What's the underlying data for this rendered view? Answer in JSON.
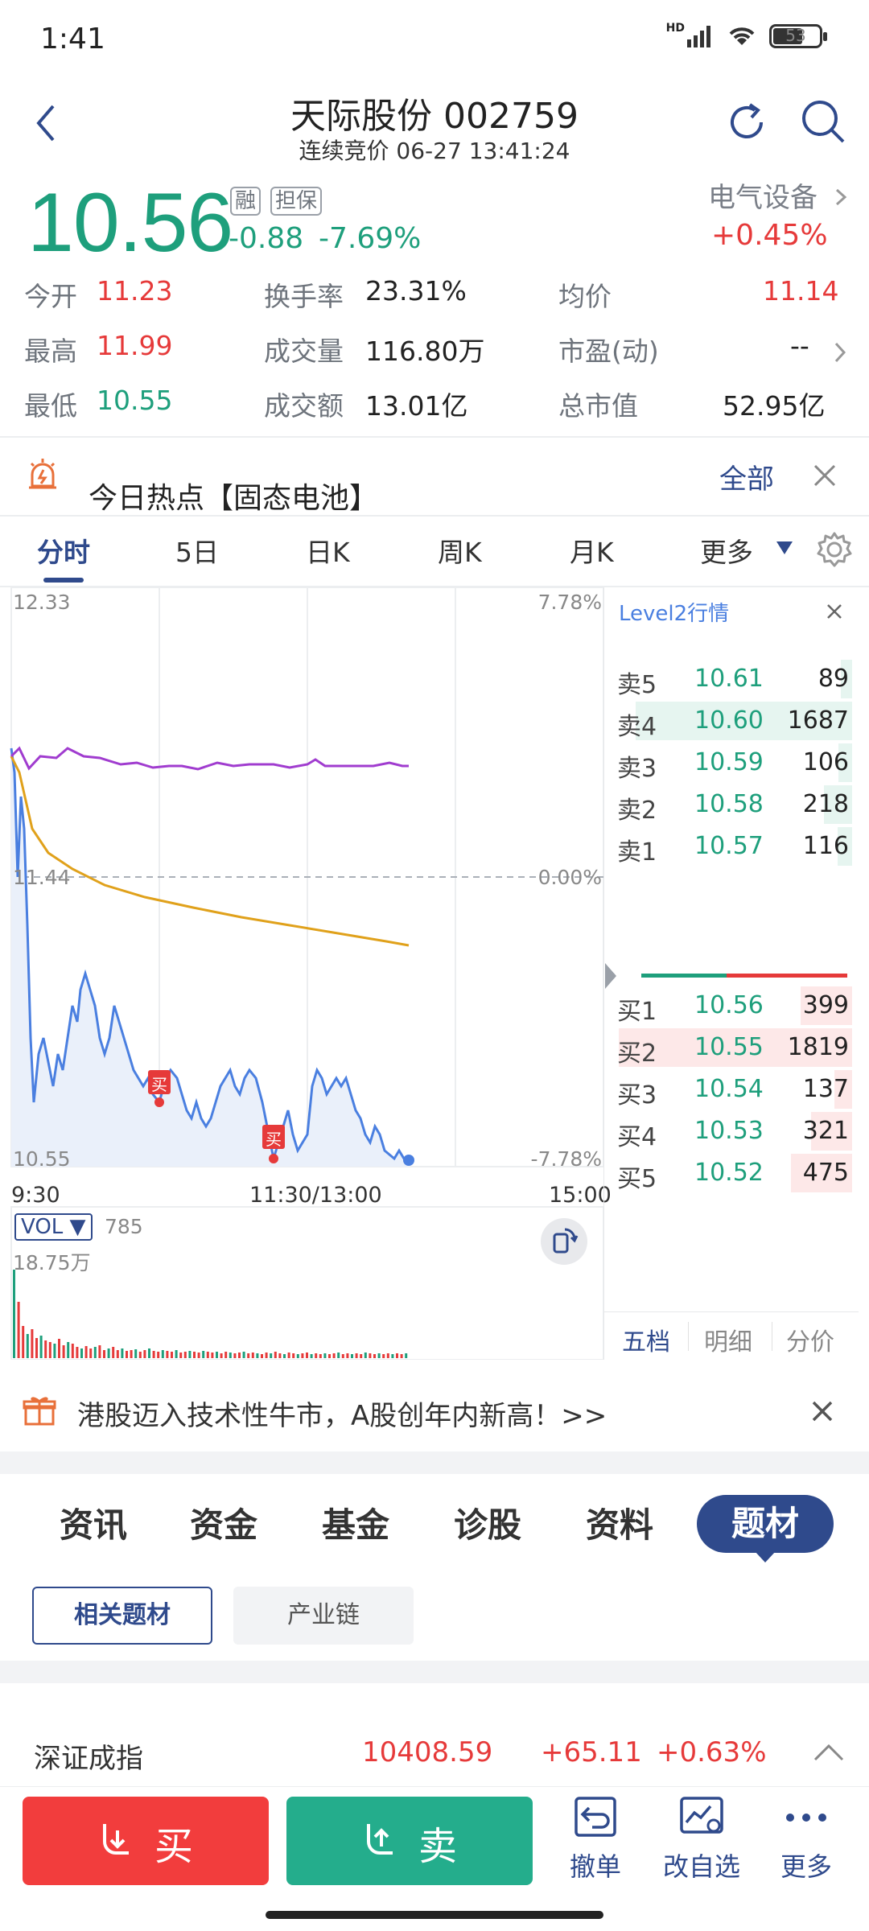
{
  "status": {
    "time": "1:41",
    "hd": "HD",
    "battery": "53"
  },
  "header": {
    "title": "天际股份 002759",
    "subtitle": "连续竞价 06-27 13:41:24"
  },
  "quote": {
    "price": "10.56",
    "change": "-0.88",
    "pct": "-7.69%",
    "tags": [
      "融",
      "担保"
    ],
    "sector": {
      "name": "电气设备",
      "pct": "+0.45%"
    },
    "grid": [
      {
        "label": "今开",
        "value": "11.23"
      },
      {
        "label": "换手率",
        "value": "23.31%"
      },
      {
        "label": "均价",
        "value": "11.14"
      },
      {
        "label": "最高",
        "value": "11.99"
      },
      {
        "label": "成交量",
        "value": "116.80万"
      },
      {
        "label": "市盈(动)",
        "value": "--"
      },
      {
        "label": "最低",
        "value": "10.55"
      },
      {
        "label": "成交额",
        "value": "13.01亿"
      },
      {
        "label": "总市值",
        "value": "52.95亿"
      }
    ]
  },
  "hot": {
    "text": "今日热点【固态电池】",
    "all_label": "全部"
  },
  "ktabs": [
    "分时",
    "5日",
    "日K",
    "周K",
    "月K",
    "更多"
  ],
  "chart": {
    "left_top": "12.33",
    "left_mid": "11.44",
    "left_bottom": "10.55",
    "right_top": "7.78%",
    "right_mid": "0.00%",
    "right_bottom": "-7.78%",
    "time_start": "9:30",
    "time_mid": "11:30/13:00",
    "time_end": "15:00",
    "buy_mark": "买",
    "vol_label": "VOL ▼",
    "vol_value": "785",
    "vol_max": "18.75万"
  },
  "level2": {
    "title": "Level2行情",
    "sells": [
      {
        "label": "卖5",
        "price": "10.61",
        "vol": "89"
      },
      {
        "label": "卖4",
        "price": "10.60",
        "vol": "1687"
      },
      {
        "label": "卖3",
        "price": "10.59",
        "vol": "106"
      },
      {
        "label": "卖2",
        "price": "10.58",
        "vol": "218"
      },
      {
        "label": "卖1",
        "price": "10.57",
        "vol": "116"
      }
    ],
    "buys": [
      {
        "label": "买1",
        "price": "10.56",
        "vol": "399"
      },
      {
        "label": "买2",
        "price": "10.55",
        "vol": "1819"
      },
      {
        "label": "买3",
        "price": "10.54",
        "vol": "137"
      },
      {
        "label": "买4",
        "price": "10.53",
        "vol": "321"
      },
      {
        "label": "买5",
        "price": "10.52",
        "vol": "475"
      }
    ],
    "tabs": [
      "五档",
      "明细",
      "分价"
    ]
  },
  "banner": {
    "text": "港股迈入技术性牛市，A股创年内新高！>>"
  },
  "section_tabs": [
    "资讯",
    "资金",
    "基金",
    "诊股",
    "资料",
    "题材"
  ],
  "sub_tabs": [
    "相关题材",
    "产业链"
  ],
  "index": {
    "name": "深证成指",
    "value": "10408.59",
    "change": "+65.11",
    "pct": "+0.63%"
  },
  "actions": {
    "buy": "买",
    "sell": "卖",
    "cancel": "撤单",
    "watch": "改自选",
    "more": "更多"
  },
  "colors": {
    "up": "#e63a3a",
    "down": "#1e9f7c",
    "accent": "#2f4a8c",
    "avg": "#e0a11b",
    "index": "#a03ccf"
  }
}
